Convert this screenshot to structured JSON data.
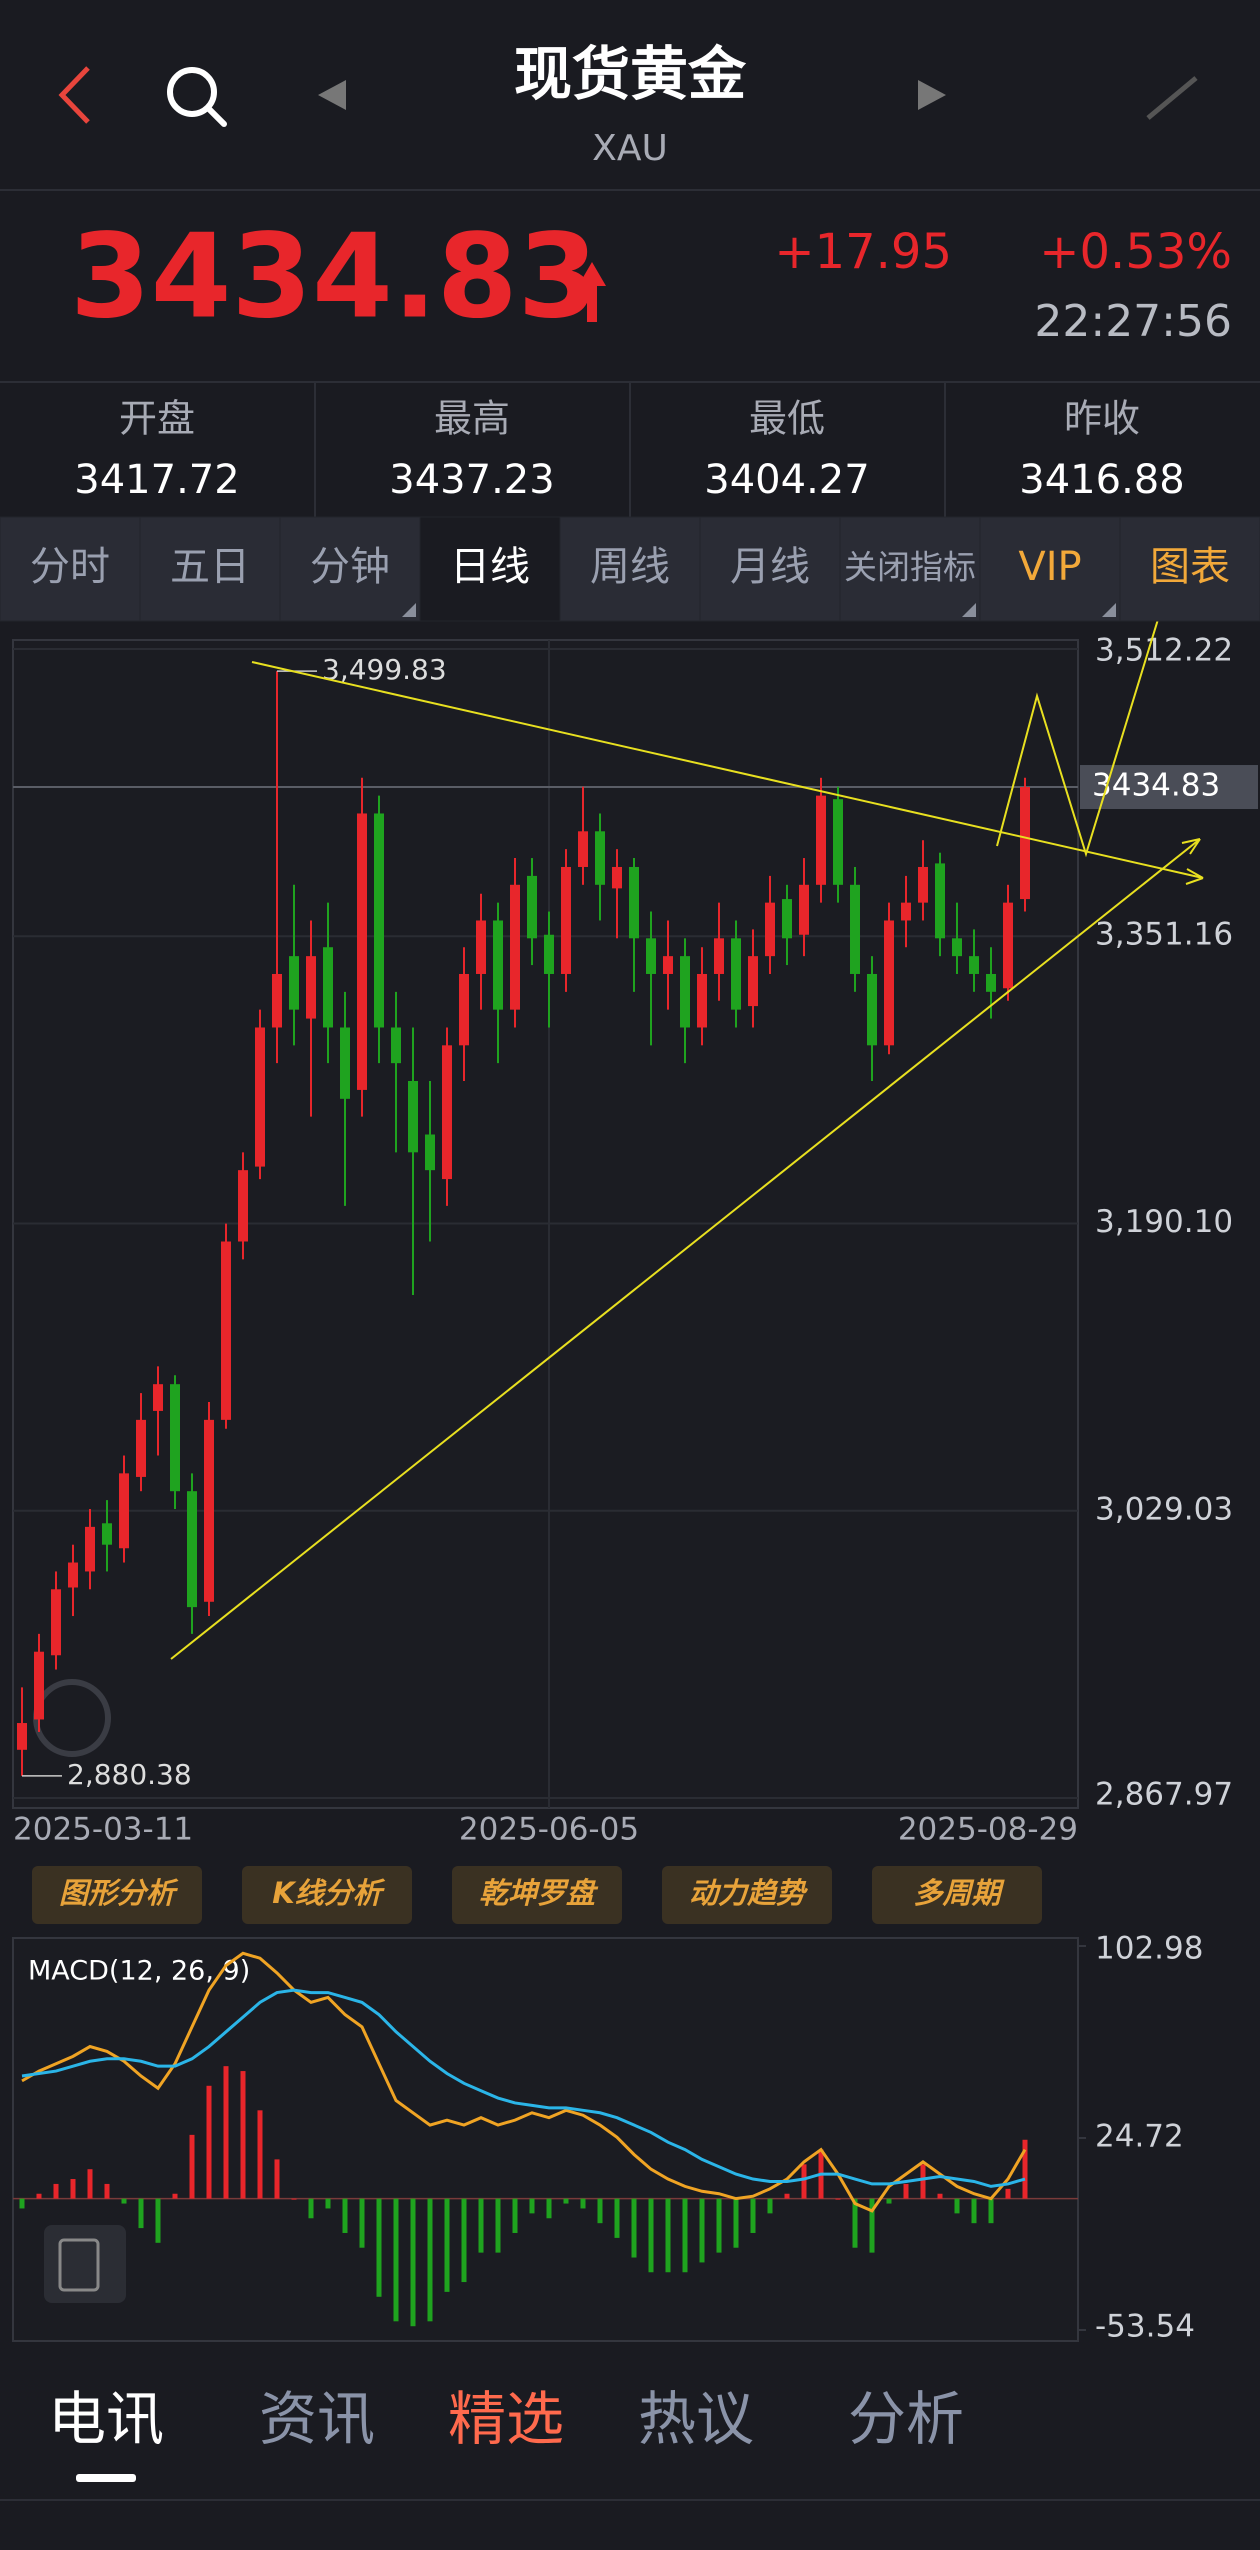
{
  "header": {
    "title": "现货黄金",
    "subtitle": "XAU"
  },
  "quote": {
    "price": 3434.83,
    "change": "+17.95",
    "change_pct": "+0.53%",
    "time": "22:27:56"
  },
  "stats": [
    {
      "label": "开盘",
      "value": 3417.72
    },
    {
      "label": "最高",
      "value": 3437.23
    },
    {
      "label": "最低",
      "value": 3404.27
    },
    {
      "label": "昨收",
      "value": 3416.88
    }
  ],
  "tabs": [
    "分时",
    "五日",
    "分钟",
    "日线",
    "周线",
    "月线",
    "关闭指标",
    "VIP",
    "图表"
  ],
  "chart_data": [
    {
      "type": "candlestick",
      "up_color": "#e8262b",
      "down_color": "#1fa31f",
      "ylim": [
        2867.97,
        3512.22
      ],
      "yticks": [
        {
          "value": 3512.22,
          "label": "3,512.22"
        },
        {
          "value": 3351.16,
          "label": "3,351.16"
        },
        {
          "value": 3190.1,
          "label": "3,190.10"
        },
        {
          "value": 3029.03,
          "label": "3,029.03"
        },
        {
          "value": 2867.97,
          "label": "2,867.97"
        }
      ],
      "last_price": 3434.83,
      "annotations": [
        {
          "value": 3499.83,
          "label": "3,499.83",
          "index": 15
        },
        {
          "value": 2880.38,
          "label": "2,880.38",
          "index": 0
        }
      ],
      "categories": [
        "2025-03-11",
        null,
        null,
        null,
        null,
        null,
        null,
        null,
        null,
        null,
        null,
        null,
        null,
        null,
        null,
        null,
        null,
        null,
        null,
        null,
        null,
        null,
        null,
        null,
        null,
        null,
        null,
        null,
        null,
        null,
        null,
        "2025-06-05",
        null,
        null,
        null,
        null,
        null,
        null,
        null,
        null,
        null,
        null,
        null,
        null,
        null,
        null,
        null,
        null,
        null,
        null,
        null,
        null,
        null,
        null,
        null,
        null,
        null,
        null,
        null,
        "2025-08-29"
      ],
      "candles": [
        [
          2895,
          2930,
          2880.38,
          2910
        ],
        [
          2912,
          2960,
          2905,
          2950
        ],
        [
          2948,
          2995,
          2940,
          2985
        ],
        [
          2986,
          3010,
          2970,
          3000
        ],
        [
          2995,
          3030,
          2985,
          3020
        ],
        [
          3022,
          3035,
          2995,
          3010
        ],
        [
          3008,
          3060,
          3000,
          3050
        ],
        [
          3048,
          3095,
          3040,
          3080
        ],
        [
          3085,
          3110,
          3060,
          3100
        ],
        [
          3100,
          3105,
          3030,
          3040
        ],
        [
          3040,
          3050,
          2960,
          2975
        ],
        [
          2978,
          3090,
          2970,
          3080
        ],
        [
          3080,
          3190,
          3075,
          3180
        ],
        [
          3180,
          3230,
          3170,
          3220
        ],
        [
          3222,
          3310,
          3215,
          3300
        ],
        [
          3300,
          3499.83,
          3280,
          3330
        ],
        [
          3340,
          3380,
          3290,
          3310
        ],
        [
          3305,
          3360,
          3250,
          3340
        ],
        [
          3345,
          3370,
          3280,
          3300
        ],
        [
          3300,
          3320,
          3200,
          3260
        ],
        [
          3265,
          3440,
          3250,
          3420
        ],
        [
          3420,
          3430,
          3280,
          3300
        ],
        [
          3300,
          3320,
          3230,
          3280
        ],
        [
          3270,
          3300,
          3150,
          3230
        ],
        [
          3240,
          3270,
          3180,
          3220
        ],
        [
          3215,
          3300,
          3200,
          3290
        ],
        [
          3290,
          3345,
          3270,
          3330
        ],
        [
          3330,
          3375,
          3310,
          3360
        ],
        [
          3360,
          3370,
          3280,
          3310
        ],
        [
          3310,
          3395,
          3300,
          3380
        ],
        [
          3385,
          3395,
          3335,
          3350
        ],
        [
          3352,
          3365,
          3300,
          3330
        ],
        [
          3330,
          3400,
          3320,
          3390
        ],
        [
          3390,
          3435,
          3380,
          3410
        ],
        [
          3410,
          3420,
          3360,
          3380
        ],
        [
          3378,
          3400,
          3350,
          3390
        ],
        [
          3390,
          3395,
          3320,
          3350
        ],
        [
          3350,
          3365,
          3290,
          3330
        ],
        [
          3330,
          3360,
          3310,
          3340
        ],
        [
          3340,
          3350,
          3280,
          3300
        ],
        [
          3300,
          3345,
          3290,
          3330
        ],
        [
          3330,
          3370,
          3315,
          3350
        ],
        [
          3350,
          3360,
          3300,
          3310
        ],
        [
          3312,
          3355,
          3300,
          3340
        ],
        [
          3340,
          3385,
          3330,
          3370
        ],
        [
          3372,
          3380,
          3335,
          3350
        ],
        [
          3352,
          3395,
          3340,
          3380
        ],
        [
          3380,
          3440,
          3370,
          3430
        ],
        [
          3428,
          3435,
          3370,
          3380
        ],
        [
          3380,
          3390,
          3320,
          3330
        ],
        [
          3330,
          3340,
          3270,
          3290
        ],
        [
          3290,
          3370,
          3285,
          3360
        ],
        [
          3360,
          3385,
          3345,
          3370
        ],
        [
          3370,
          3405,
          3360,
          3390
        ],
        [
          3392,
          3398,
          3340,
          3350
        ],
        [
          3350,
          3370,
          3330,
          3340
        ],
        [
          3340,
          3355,
          3320,
          3330
        ],
        [
          3330,
          3345,
          3305,
          3320
        ],
        [
          3322,
          3380,
          3315,
          3370
        ],
        [
          3372,
          3440,
          3365,
          3434.83
        ]
      ]
    },
    {
      "type": "macd",
      "title": "MACD(12, 26, 9)",
      "ylim": [
        -53.54,
        102.98
      ],
      "yticks": [
        102.98,
        24.72,
        -53.54
      ],
      "up_color": "#e8262b",
      "down_color": "#1fa31f",
      "histogram": [
        -4,
        2,
        6,
        8,
        12,
        6,
        -2,
        -12,
        -18,
        2,
        26,
        46,
        54,
        52,
        36,
        16,
        0,
        -8,
        -4,
        -14,
        -20,
        -40,
        -50,
        -52,
        -50,
        -38,
        -34,
        -22,
        -22,
        -14,
        -6,
        -8,
        -2,
        -4,
        -10,
        -16,
        -24,
        -30,
        -30,
        -30,
        -26,
        -22,
        -20,
        -14,
        -6,
        2,
        14,
        20,
        0,
        -20,
        -22,
        -2,
        6,
        14,
        2,
        -6,
        -10,
        -10,
        4,
        24
      ],
      "series": [
        {
          "color": "#f0a424",
          "values": [
            48,
            52,
            55,
            58,
            62,
            60,
            56,
            50,
            45,
            55,
            70,
            85,
            95,
            100,
            98,
            92,
            85,
            80,
            82,
            75,
            70,
            55,
            40,
            35,
            30,
            32,
            30,
            33,
            30,
            32,
            35,
            33,
            36,
            34,
            30,
            25,
            18,
            12,
            8,
            5,
            3,
            2,
            0,
            1,
            4,
            8,
            15,
            20,
            10,
            -2,
            -5,
            5,
            10,
            15,
            10,
            5,
            2,
            0,
            8,
            20
          ]
        },
        {
          "color": "#2bb5e8",
          "values": [
            50,
            51,
            52,
            54,
            56,
            57,
            57,
            56,
            54,
            54,
            57,
            62,
            68,
            74,
            80,
            84,
            85,
            84,
            84,
            82,
            80,
            75,
            68,
            62,
            56,
            51,
            47,
            44,
            41,
            39,
            38,
            37,
            37,
            36,
            35,
            33,
            30,
            27,
            23,
            20,
            16,
            13,
            10,
            8,
            7,
            7,
            8,
            10,
            10,
            8,
            6,
            6,
            7,
            8,
            9,
            8,
            7,
            5,
            6,
            8
          ]
        }
      ]
    }
  ],
  "tools": [
    "图形分析",
    "K线分析",
    "乾坤罗盘",
    "动力趋势",
    "多周期"
  ],
  "nav": [
    "电讯",
    "资讯",
    "精选",
    "热议",
    "分析"
  ]
}
